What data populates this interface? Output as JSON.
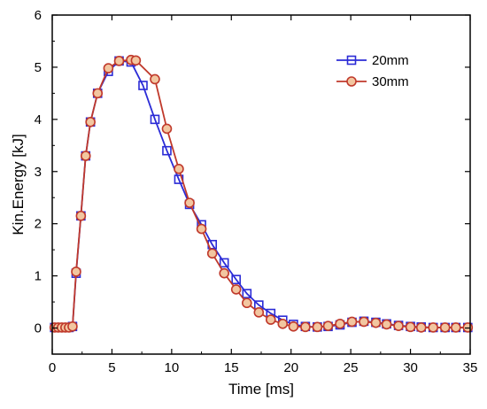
{
  "chart_data": {
    "type": "line",
    "title": "",
    "xlabel": "Time [ms]",
    "ylabel": "Kin.Energy [kJ]",
    "xlim": [
      0,
      35
    ],
    "ylim": [
      -0.5,
      6
    ],
    "xticks": [
      "0",
      "5",
      "10",
      "15",
      "20",
      "25",
      "30",
      "35"
    ],
    "yticks": [
      "0",
      "1",
      "2",
      "3",
      "4",
      "5",
      "6"
    ],
    "grid": false,
    "legend_position": "top-right",
    "series": [
      {
        "name": "20mm",
        "color": "#2b2bd6",
        "marker": "square",
        "x": [
          0.2,
          0.5,
          0.8,
          1.1,
          1.4,
          1.7,
          2.0,
          2.4,
          2.8,
          3.2,
          3.8,
          4.7,
          5.6,
          6.6,
          7.6,
          8.6,
          9.6,
          10.6,
          11.5,
          12.5,
          13.4,
          14.4,
          15.4,
          16.3,
          17.3,
          18.3,
          19.3,
          20.2,
          21.2,
          22.2,
          23.1,
          24.1,
          25.1,
          26.1,
          27.1,
          28.0,
          29.0,
          30.0,
          30.9,
          31.9,
          32.9,
          33.8,
          34.8
        ],
        "y": [
          0.01,
          0.01,
          0.01,
          0.01,
          0.01,
          0.03,
          1.05,
          2.15,
          3.3,
          3.95,
          4.5,
          4.92,
          5.12,
          5.1,
          4.65,
          4.0,
          3.4,
          2.85,
          2.37,
          1.98,
          1.6,
          1.25,
          0.93,
          0.66,
          0.44,
          0.28,
          0.15,
          0.07,
          0.03,
          0.02,
          0.03,
          0.06,
          0.11,
          0.13,
          0.11,
          0.08,
          0.05,
          0.03,
          0.02,
          0.01,
          0.01,
          0.01,
          0.01
        ]
      },
      {
        "name": "30mm",
        "color": "#c0392b",
        "marker": "circle",
        "x": [
          0.2,
          0.5,
          0.8,
          1.1,
          1.4,
          1.7,
          2.0,
          2.4,
          2.8,
          3.2,
          3.8,
          4.7,
          5.6,
          6.6,
          7.0,
          8.6,
          9.6,
          10.6,
          11.5,
          12.5,
          13.4,
          14.4,
          15.4,
          16.3,
          17.3,
          18.3,
          19.3,
          20.2,
          21.2,
          22.2,
          23.1,
          24.1,
          25.1,
          26.1,
          27.1,
          28.0,
          29.0,
          30.0,
          30.9,
          31.9,
          32.9,
          33.8,
          34.8
        ],
        "y": [
          0.01,
          0.01,
          0.01,
          0.01,
          0.01,
          0.03,
          1.08,
          2.15,
          3.3,
          3.95,
          4.5,
          4.98,
          5.12,
          5.14,
          5.13,
          4.77,
          3.82,
          3.05,
          2.4,
          1.9,
          1.43,
          1.05,
          0.74,
          0.48,
          0.3,
          0.16,
          0.08,
          0.03,
          0.02,
          0.02,
          0.04,
          0.08,
          0.12,
          0.12,
          0.1,
          0.07,
          0.04,
          0.02,
          0.01,
          0.01,
          0.01,
          0.01,
          0.01
        ]
      }
    ]
  }
}
